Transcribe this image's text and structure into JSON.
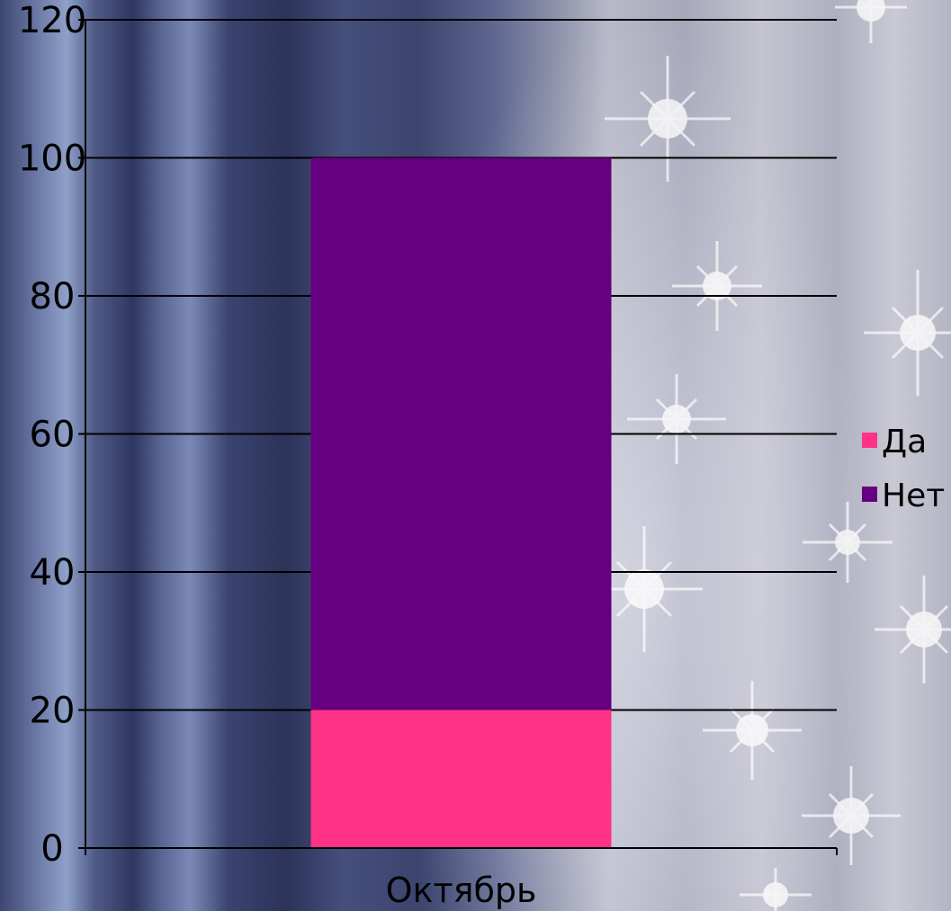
{
  "chart_data": {
    "type": "bar",
    "stacked": true,
    "categories": [
      "Октябрь"
    ],
    "series": [
      {
        "name": "Да",
        "values": [
          20
        ],
        "color": "#ff3385"
      },
      {
        "name": "Нет",
        "values": [
          80
        ],
        "color": "#660080"
      }
    ],
    "ylim": [
      0,
      120
    ],
    "yticks": [
      0,
      20,
      40,
      60,
      80,
      100,
      120
    ],
    "grid": true,
    "legend_position": "right",
    "title": "",
    "xlabel": "",
    "ylabel": ""
  }
}
